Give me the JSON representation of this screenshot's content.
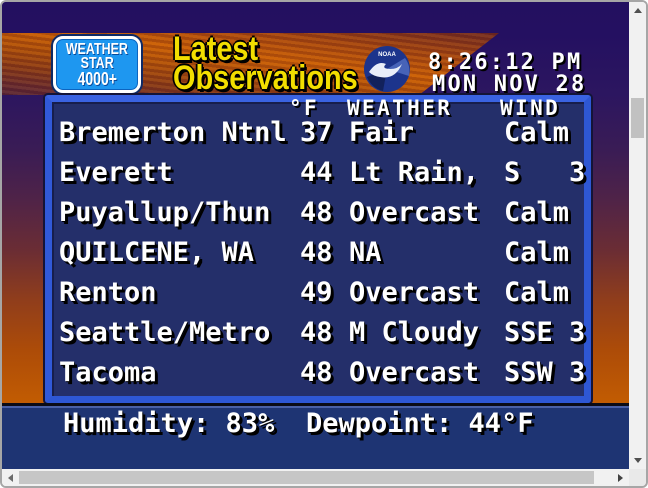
{
  "header": {
    "logo": {
      "lines": [
        "WEATHER",
        "STAR",
        "4000+"
      ]
    },
    "title": {
      "line1": "Latest",
      "line2": "Observations"
    },
    "noaa": {
      "label": "NOAA"
    },
    "clock": {
      "time": "8:26:12 PM",
      "date": "MON NOV 28"
    }
  },
  "observations": {
    "columns": {
      "temp": "°F",
      "weather": "WEATHER",
      "wind": "WIND"
    },
    "rows": [
      {
        "station": "Bremerton Ntnl",
        "temp": "37",
        "weather": "Fair",
        "wind": "Calm"
      },
      {
        "station": "Everett",
        "temp": "44",
        "weather": "Lt Rain,",
        "wind": "S   3"
      },
      {
        "station": "Puyallup/Thun",
        "temp": "48",
        "weather": "Overcast",
        "wind": "Calm"
      },
      {
        "station": "QUILCENE, WA",
        "temp": "48",
        "weather": "NA",
        "wind": "Calm"
      },
      {
        "station": "Renton",
        "temp": "49",
        "weather": "Overcast",
        "wind": "Calm"
      },
      {
        "station": "Seattle/Metro",
        "temp": "48",
        "weather": "M Cloudy",
        "wind": "SSE 3"
      },
      {
        "station": "Tacoma",
        "temp": "48",
        "weather": "Overcast",
        "wind": "SSW 3"
      }
    ]
  },
  "footer": {
    "humidity": "Humidity: 83%",
    "dewpoint": "Dewpoint: 44°F"
  },
  "colors": {
    "screen_indigo": "#231060",
    "banner_orange_bright": "#cb5e04",
    "banner_dark_red": "#6e2822",
    "background_orange_bottom": "#c25c02",
    "panel_navy": "#242f6a",
    "panel_border_blue": "#2e57d4",
    "footer_navy": "#1e3473",
    "logo_blue": "#1e97f0",
    "title_yellow": "#f2de00",
    "text_white": "#ffffff"
  }
}
